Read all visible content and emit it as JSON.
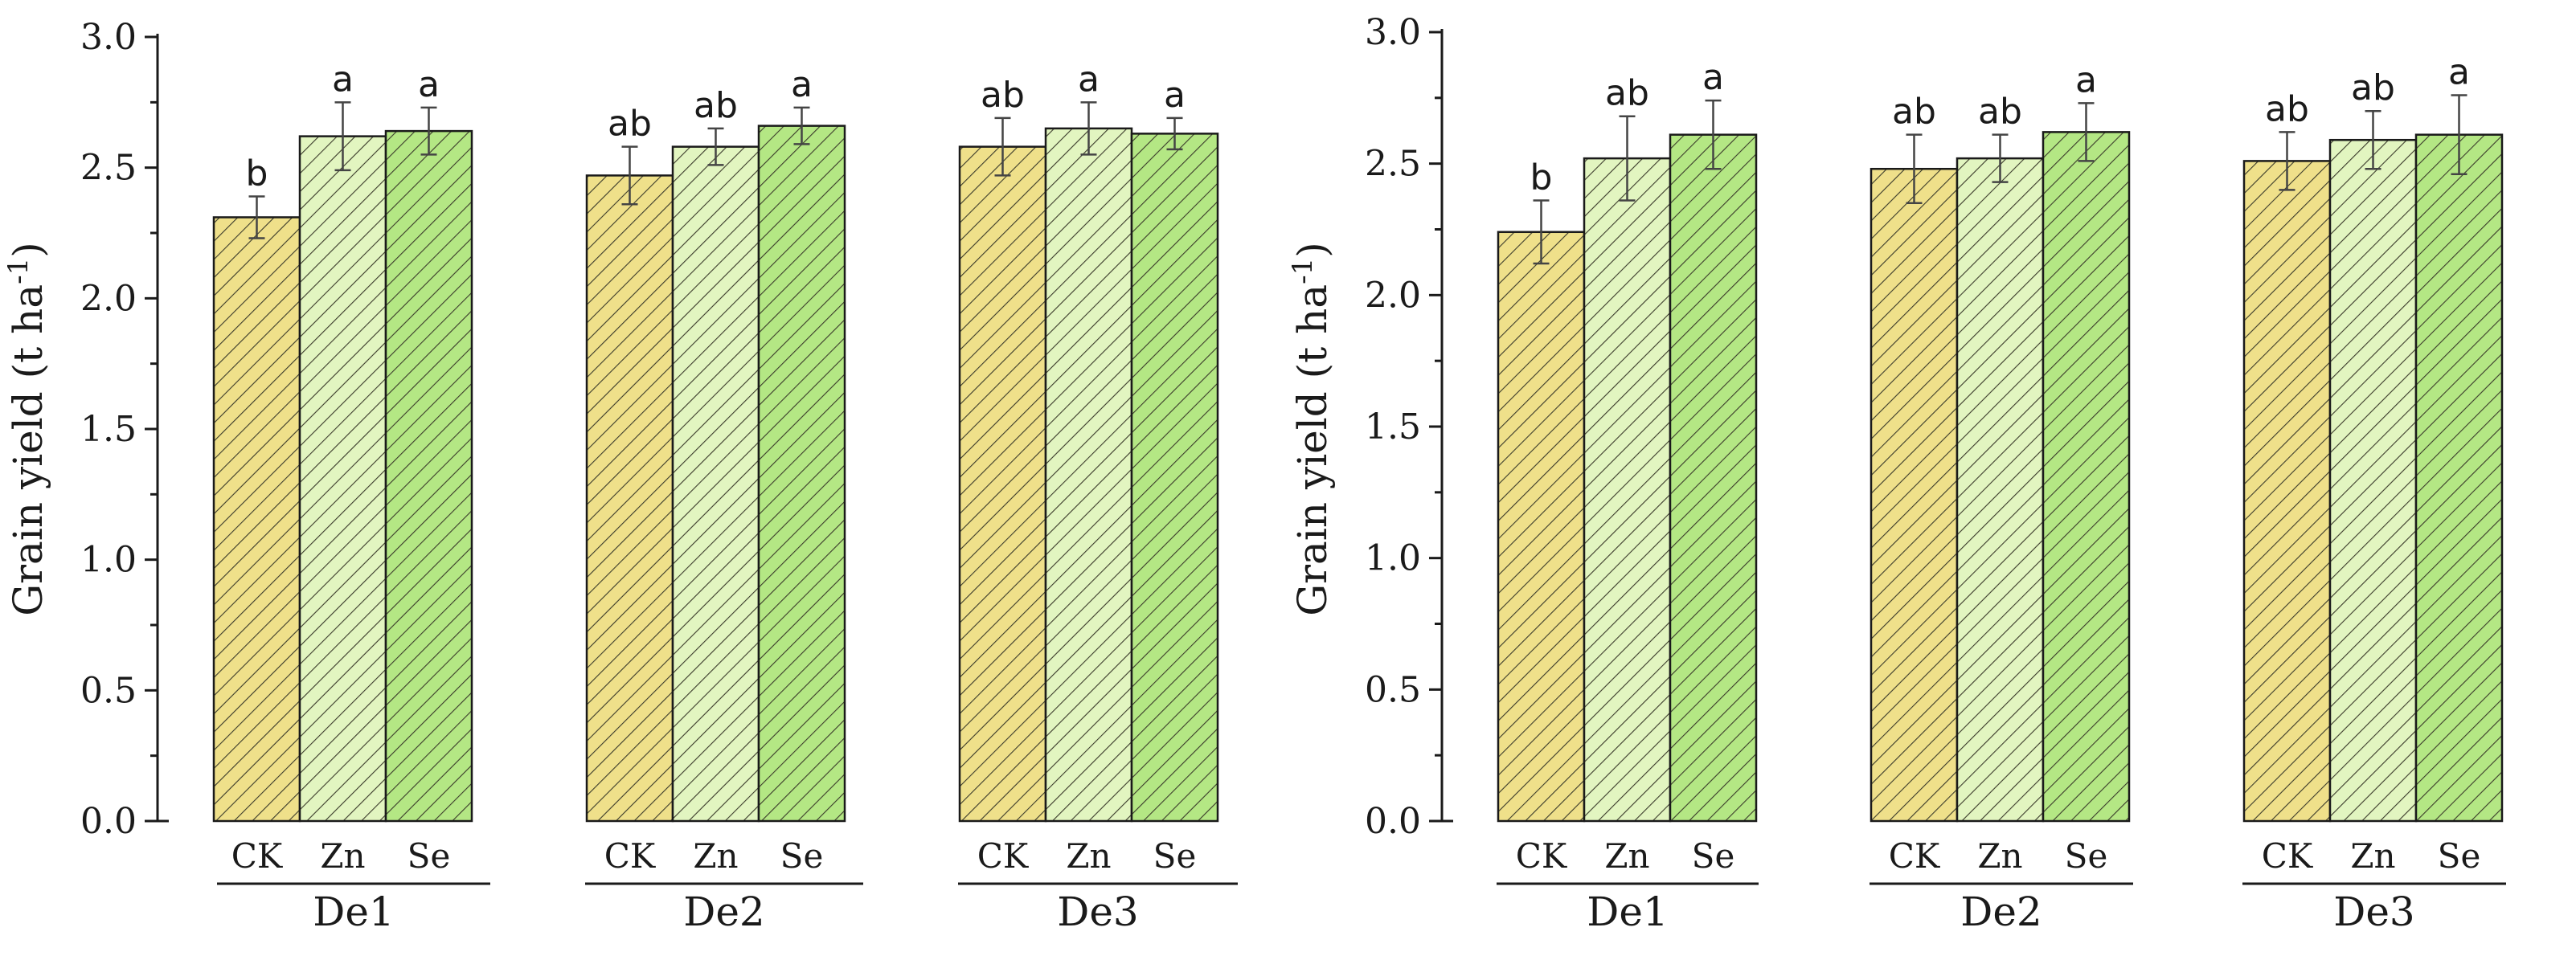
{
  "chart_data": [
    {
      "type": "bar",
      "panel": "left",
      "ylabel": "Grain yield (t ha",
      "ylabel_sup": "-1",
      "ylabel_close": ")",
      "ylim": [
        0,
        3.0
      ],
      "yticks": [
        "0.0",
        "0.5",
        "1.0",
        "1.5",
        "2.0",
        "2.5",
        "3.0"
      ],
      "ytick_values": [
        0,
        0.5,
        1.0,
        1.5,
        2.0,
        2.5,
        3.0
      ],
      "categories": [
        "CK",
        "Zn",
        "Se"
      ],
      "groups": [
        {
          "name": "De1",
          "values": [
            2.31,
            2.62,
            2.64
          ],
          "errors": [
            0.08,
            0.13,
            0.09
          ],
          "letters": [
            "b",
            "a",
            "a"
          ]
        },
        {
          "name": "De2",
          "values": [
            2.47,
            2.58,
            2.66
          ],
          "errors": [
            0.11,
            0.07,
            0.07
          ],
          "letters": [
            "ab",
            "ab",
            "a"
          ]
        },
        {
          "name": "De3",
          "values": [
            2.58,
            2.65,
            2.63
          ],
          "errors": [
            0.11,
            0.1,
            0.06
          ],
          "letters": [
            "ab",
            "a",
            "a"
          ]
        }
      ]
    },
    {
      "type": "bar",
      "panel": "right",
      "ylabel": "Grain yield (t ha",
      "ylabel_sup": "-1",
      "ylabel_close": ")",
      "ylim": [
        0,
        3.0
      ],
      "yticks": [
        "0.0",
        "0.5",
        "1.0",
        "1.5",
        "2.0",
        "2.5",
        "3.0"
      ],
      "ytick_values": [
        0,
        0.5,
        1.0,
        1.5,
        2.0,
        2.5,
        3.0
      ],
      "categories": [
        "CK",
        "Zn",
        "Se"
      ],
      "groups": [
        {
          "name": "De1",
          "values": [
            2.24,
            2.52,
            2.61
          ],
          "errors": [
            0.12,
            0.16,
            0.13
          ],
          "letters": [
            "b",
            "ab",
            "a"
          ]
        },
        {
          "name": "De2",
          "values": [
            2.48,
            2.52,
            2.62
          ],
          "errors": [
            0.13,
            0.09,
            0.11
          ],
          "letters": [
            "ab",
            "ab",
            "a"
          ]
        },
        {
          "name": "De3",
          "values": [
            2.51,
            2.59,
            2.61
          ],
          "errors": [
            0.11,
            0.11,
            0.15
          ],
          "letters": [
            "ab",
            "ab",
            "a"
          ]
        }
      ]
    }
  ],
  "colors": {
    "CK": "#efe08a",
    "Zn": "#e2f5c0",
    "Se": "#b4e784",
    "hatch": "#3a3a2a",
    "axis": "#1a1a1a"
  }
}
